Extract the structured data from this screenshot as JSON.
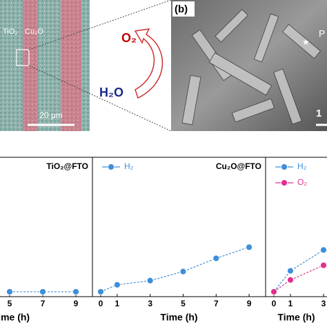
{
  "figure": {
    "micrograph": {
      "label_left": "TiO₂",
      "label_right": "Cu₂O",
      "scale": "20 μm"
    },
    "scheme": {
      "product": "O₂",
      "reactant": "H₂O"
    },
    "sem": {
      "panel_label": "(b)",
      "point_label": "P",
      "scale": "1"
    }
  },
  "chart_data": [
    {
      "type": "line",
      "title": "TiO₂@FTO",
      "xlabel": "Time (h)",
      "x": [
        5,
        7,
        9
      ],
      "xlim": [
        -0.5,
        10
      ],
      "xticks": [
        5,
        7,
        9
      ],
      "ylim": [
        0,
        20
      ],
      "series": [
        {
          "color": "#3d8fd9",
          "values": [
            0.7,
            0.7,
            0.7
          ]
        }
      ]
    },
    {
      "type": "line",
      "title": "Cu₂O@FTO",
      "xlabel": "Time (h)",
      "x": [
        0,
        1,
        3,
        5,
        7,
        9
      ],
      "xlim": [
        -0.5,
        10
      ],
      "xticks": [
        0,
        1,
        3,
        5,
        7,
        9
      ],
      "ylim": [
        0,
        20
      ],
      "series": [
        {
          "name": "H₂",
          "color": "#3d8fd9",
          "values": [
            0.7,
            1.7,
            2.3,
            3.6,
            5.5,
            7.1
          ]
        }
      ]
    },
    {
      "type": "line",
      "xlabel": "Time (h)",
      "x": [
        0,
        1,
        3
      ],
      "xlim": [
        -0.5,
        10
      ],
      "xticks": [
        0,
        1,
        3
      ],
      "ylim": [
        0,
        20
      ],
      "series": [
        {
          "name": "H₂",
          "color": "#3d8fd9",
          "values": [
            0.7,
            3.7,
            6.7
          ]
        },
        {
          "name": "O₂",
          "color": "#e0308f",
          "values": [
            0.7,
            2.4,
            4.5
          ]
        }
      ]
    }
  ]
}
